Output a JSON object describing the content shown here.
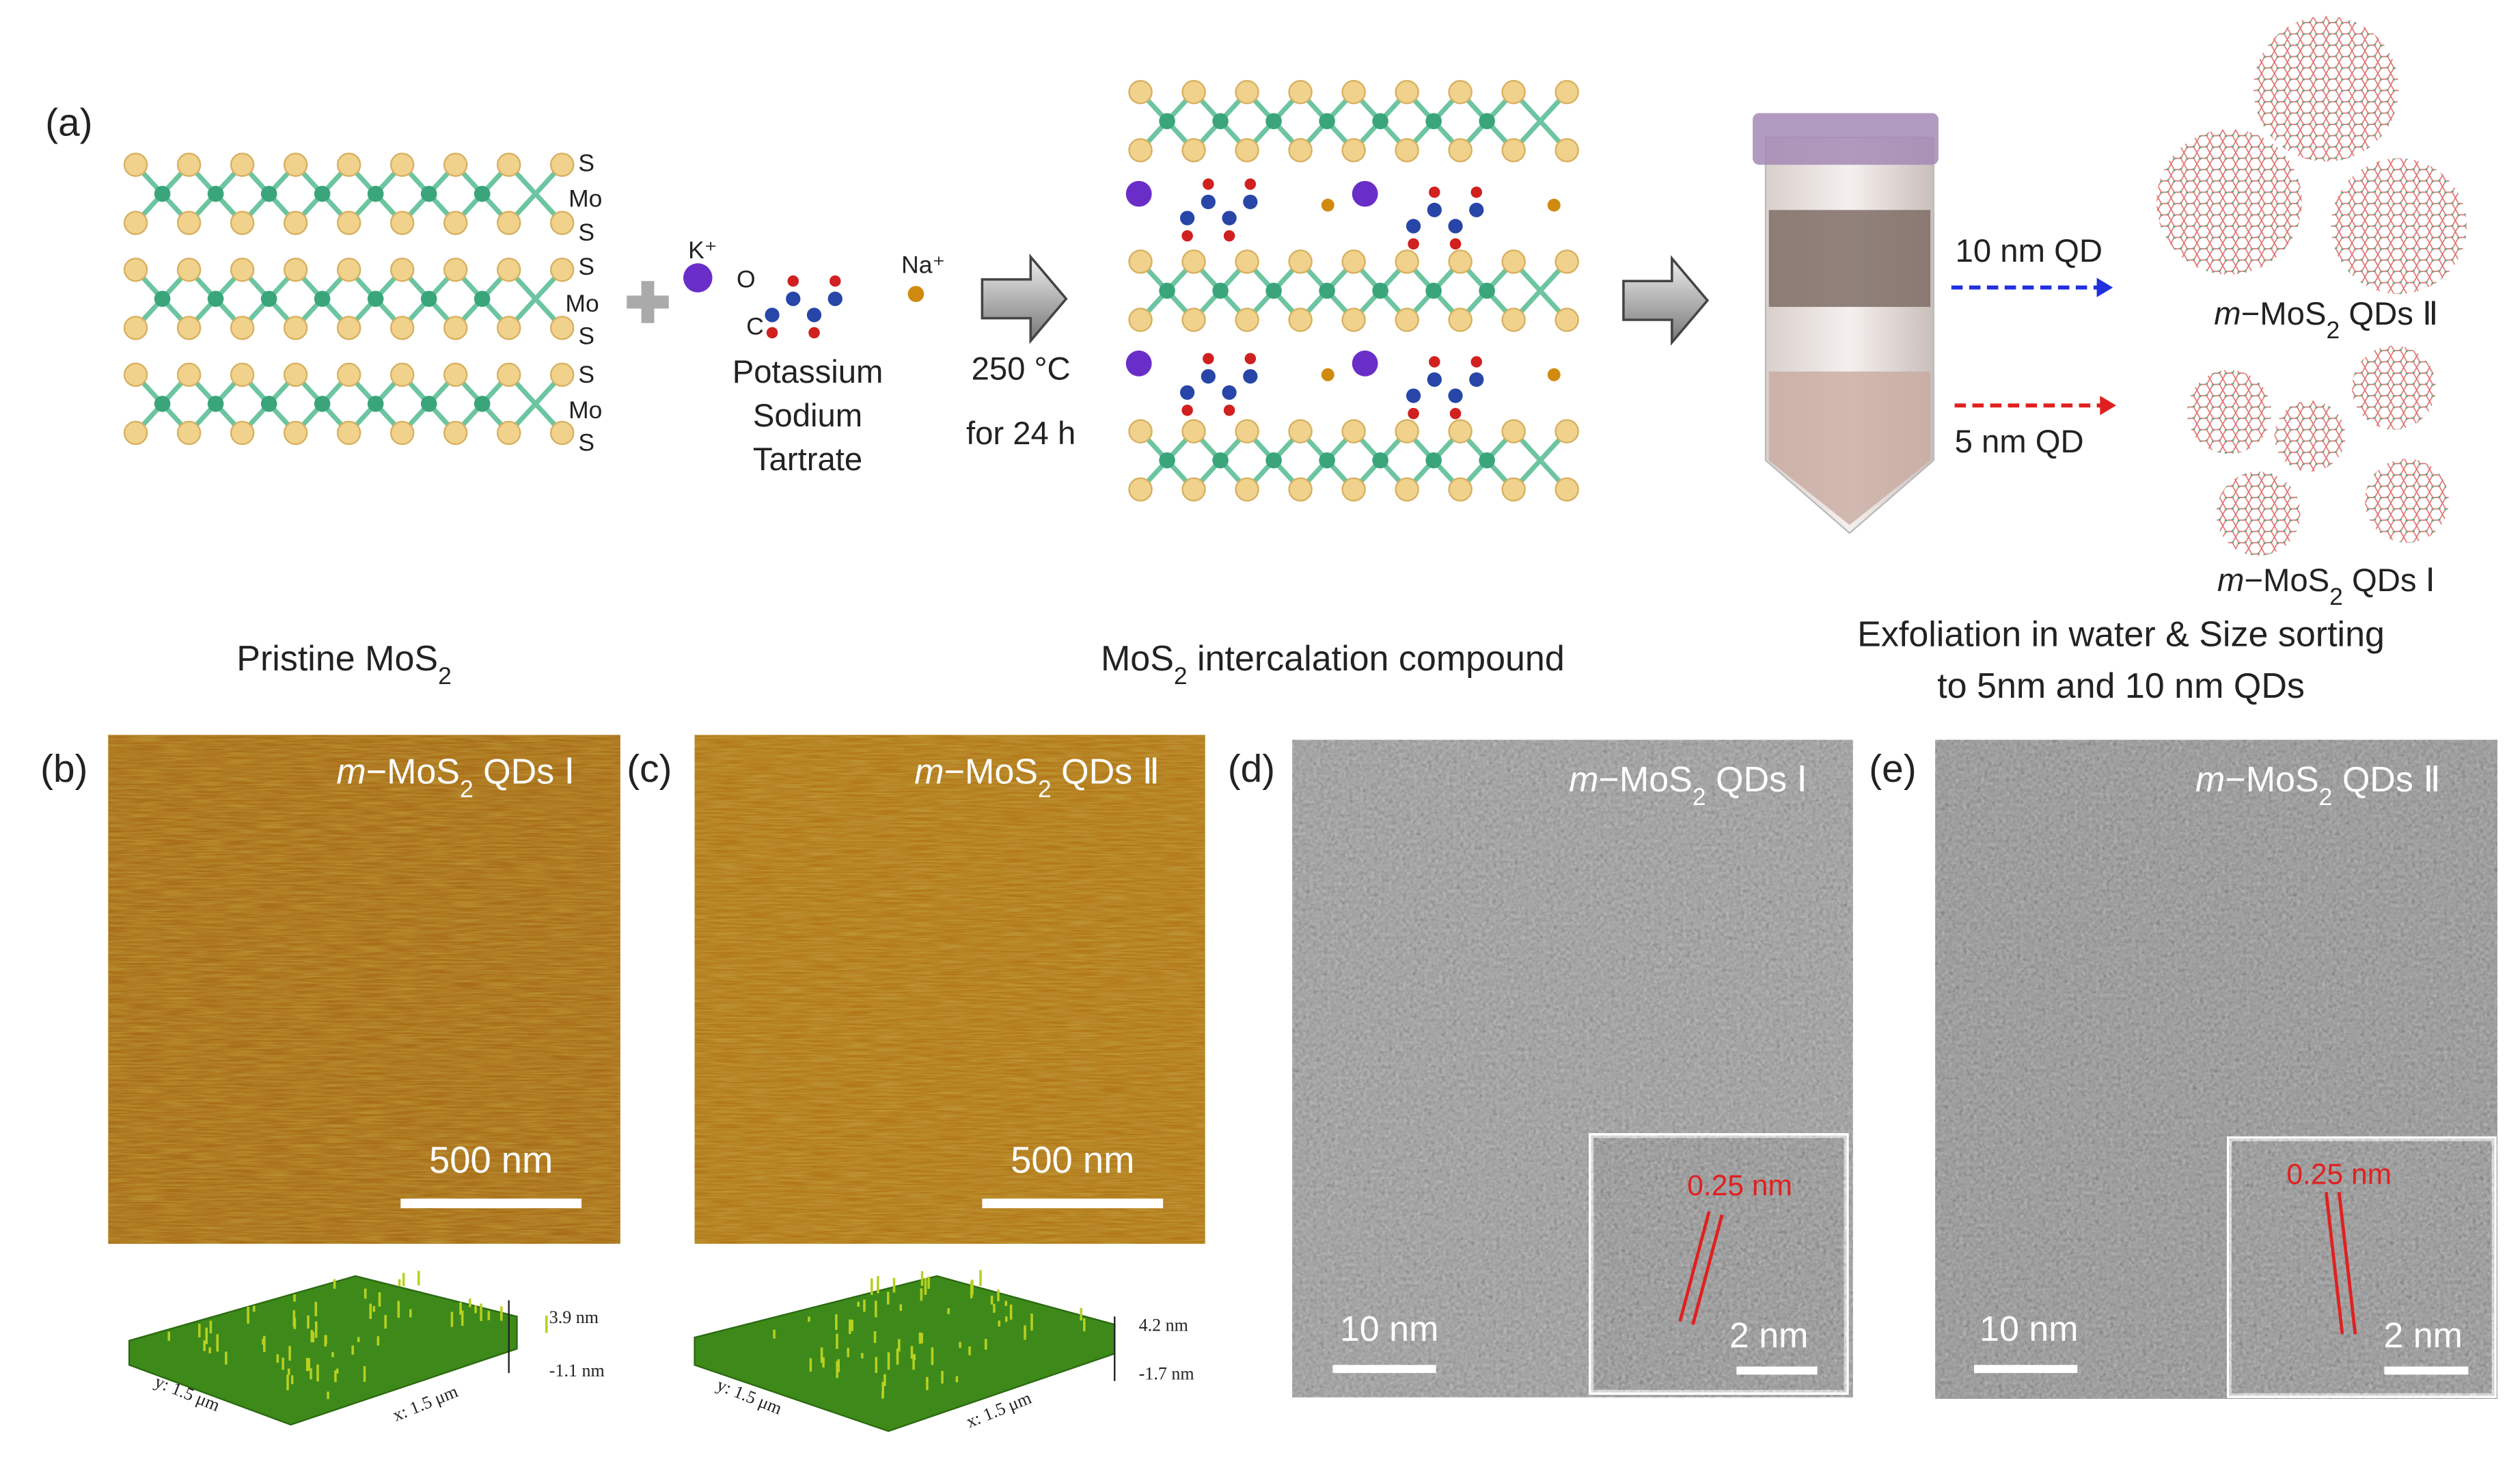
{
  "panel_a": {
    "label": "(a)",
    "layer_labels": [
      "S",
      "Mo",
      "S",
      "S",
      "Mo",
      "S",
      "S",
      "Mo",
      "S"
    ],
    "k_ion": "K⁺",
    "na_ion": "Na⁺",
    "atom_o": "O",
    "atom_c": "C",
    "reagent": [
      "Potassium",
      "Sodium",
      "Tartrate"
    ],
    "conditions": [
      "250 °C",
      "for 24 h"
    ],
    "size_arrows": [
      "10 nm QD",
      "5 nm QD"
    ],
    "product_2": [
      "m",
      "−MoS",
      "2",
      " QDs Ⅱ"
    ],
    "product_1": [
      "m",
      "−MoS",
      "2",
      " QDs Ⅰ"
    ],
    "caption_pristine": [
      "Pristine MoS",
      "2"
    ],
    "caption_intercalation": [
      "MoS",
      "2",
      " intercalation compound"
    ],
    "caption_exfoliation": [
      "Exfoliation in water & Size sorting",
      "to 5nm and 10 nm QDs"
    ]
  },
  "panel_b": {
    "label": "(b)",
    "title": [
      "m",
      "−MoS",
      "2",
      " QDs Ⅰ"
    ],
    "scale_bar": "500 nm",
    "z_max": "3.9 nm",
    "z_min": "-1.1 nm",
    "y_axis": "y: 1.5 μm",
    "x_axis": "x: 1.5 μm"
  },
  "panel_c": {
    "label": "(c)",
    "title": [
      "m",
      "−MoS",
      "2",
      " QDs Ⅱ"
    ],
    "scale_bar": "500 nm",
    "z_max": "4.2 nm",
    "z_min": "-1.7 nm",
    "y_axis": "y: 1.5 μm",
    "x_axis": "x: 1.5 μm"
  },
  "panel_d": {
    "label": "(d)",
    "title": [
      "m",
      "−MoS",
      "2",
      " QDs Ⅰ"
    ],
    "scale_bar": "10 nm",
    "inset_spacing": "0.25 nm",
    "inset_scale_bar": "2 nm"
  },
  "panel_e": {
    "label": "(e)",
    "title": [
      "m",
      "−MoS",
      "2",
      " QDs Ⅱ"
    ],
    "scale_bar": "10 nm",
    "inset_spacing": "0.25 nm",
    "inset_scale_bar": "2 nm"
  }
}
